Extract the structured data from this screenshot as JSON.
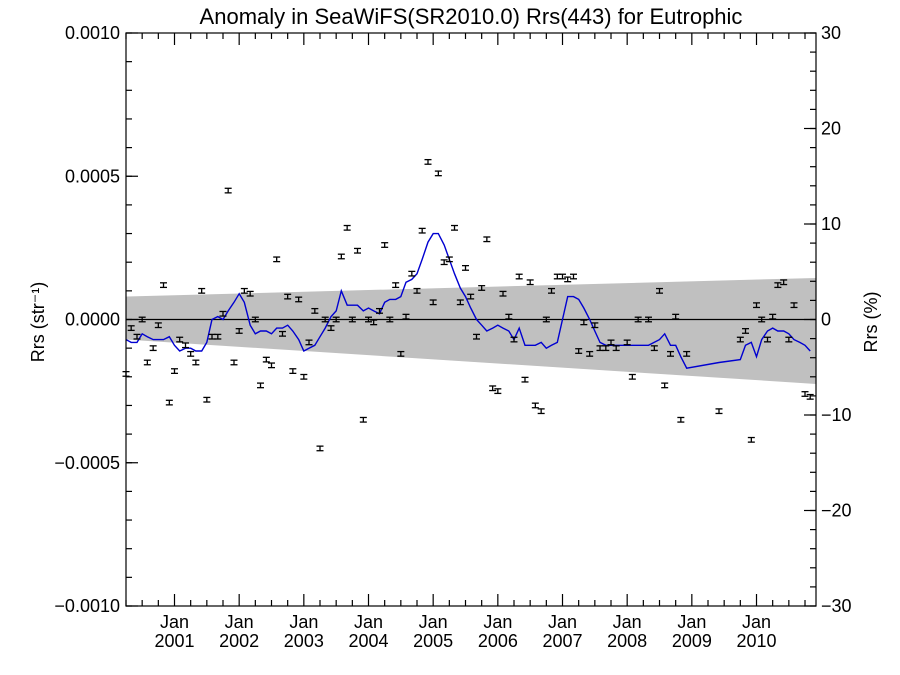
{
  "chart_data": {
    "type": "scatter",
    "title": "Anomaly in SeaWiFS(SR2010.0) Rrs(443) for Eutrophic",
    "ylabel_left": "Rrs (str⁻¹)",
    "ylabel_right": "Rrs (%)",
    "xlim": [
      2000.25,
      2010.92
    ],
    "ylim": [
      -0.001,
      0.001
    ],
    "ylim_right": [
      -30,
      30
    ],
    "grid": false,
    "x_ticks": [
      {
        "value": 2001.0,
        "top": "Jan",
        "bottom": "2001"
      },
      {
        "value": 2002.0,
        "top": "Jan",
        "bottom": "2002"
      },
      {
        "value": 2003.0,
        "top": "Jan",
        "bottom": "2003"
      },
      {
        "value": 2004.0,
        "top": "Jan",
        "bottom": "2004"
      },
      {
        "value": 2005.0,
        "top": "Jan",
        "bottom": "2005"
      },
      {
        "value": 2006.0,
        "top": "Jan",
        "bottom": "2006"
      },
      {
        "value": 2007.0,
        "top": "Jan",
        "bottom": "2007"
      },
      {
        "value": 2008.0,
        "top": "Jan",
        "bottom": "2008"
      },
      {
        "value": 2009.0,
        "top": "Jan",
        "bottom": "2009"
      },
      {
        "value": 2010.0,
        "top": "Jan",
        "bottom": "2010"
      }
    ],
    "y_ticks_left": [
      {
        "value": 0.001,
        "label": "0.0010"
      },
      {
        "value": 0.0005,
        "label": "0.0005"
      },
      {
        "value": 0.0,
        "label": "0.0000"
      },
      {
        "value": -0.0005,
        "label": "−0.0005"
      },
      {
        "value": -0.001,
        "label": "−0.0010"
      }
    ],
    "y_ticks_right": [
      {
        "value": 30,
        "label": "30"
      },
      {
        "value": 20,
        "label": "20"
      },
      {
        "value": 10,
        "label": "10"
      },
      {
        "value": 0,
        "label": "0"
      },
      {
        "value": -10,
        "label": "−10"
      },
      {
        "value": -20,
        "label": "−20"
      },
      {
        "value": -30,
        "label": "−30"
      }
    ],
    "band": {
      "color": "#c0c0c0",
      "x": [
        2000.25,
        2010.92
      ],
      "upper": [
        8e-05,
        0.000145
      ],
      "lower": [
        -7e-05,
        -0.000225
      ]
    },
    "zero_line": {
      "y": 0.0,
      "color": "#000000"
    },
    "series": [
      {
        "kind": "points_errorbar",
        "color": "#000000",
        "error": 8e-06,
        "points": [
          [
            2000.25,
            -0.00019
          ],
          [
            2000.33,
            -3e-05
          ],
          [
            2000.42,
            -6e-05
          ],
          [
            2000.5,
            0.0
          ],
          [
            2000.58,
            -0.00015
          ],
          [
            2000.67,
            -0.0001
          ],
          [
            2000.75,
            -2e-05
          ],
          [
            2000.83,
            0.00012
          ],
          [
            2000.92,
            -0.00029
          ],
          [
            2001.0,
            -0.00018
          ],
          [
            2001.08,
            -7e-05
          ],
          [
            2001.17,
            -9e-05
          ],
          [
            2001.25,
            -0.00012
          ],
          [
            2001.33,
            -0.00015
          ],
          [
            2001.42,
            0.0001
          ],
          [
            2001.5,
            -0.00028
          ],
          [
            2001.58,
            -6e-05
          ],
          [
            2001.67,
            -6e-05
          ],
          [
            2001.75,
            2e-05
          ],
          [
            2001.83,
            0.00045
          ],
          [
            2001.92,
            -0.00015
          ],
          [
            2002.0,
            -4e-05
          ],
          [
            2002.08,
            0.0001
          ],
          [
            2002.17,
            9e-05
          ],
          [
            2002.25,
            0.0
          ],
          [
            2002.33,
            -0.00023
          ],
          [
            2002.42,
            -0.00014
          ],
          [
            2002.5,
            -0.00016
          ],
          [
            2002.58,
            0.00021
          ],
          [
            2002.67,
            -5e-05
          ],
          [
            2002.75,
            8e-05
          ],
          [
            2002.83,
            -0.00018
          ],
          [
            2002.92,
            7e-05
          ],
          [
            2003.0,
            -0.0002
          ],
          [
            2003.08,
            -8e-05
          ],
          [
            2003.17,
            3e-05
          ],
          [
            2003.25,
            -0.00045
          ],
          [
            2003.33,
            0.0
          ],
          [
            2003.42,
            -3e-05
          ],
          [
            2003.5,
            0.0
          ],
          [
            2003.58,
            0.00022
          ],
          [
            2003.67,
            0.00032
          ],
          [
            2003.75,
            0.0
          ],
          [
            2003.83,
            0.00024
          ],
          [
            2003.92,
            -0.00035
          ],
          [
            2004.0,
            0.0
          ],
          [
            2004.08,
            -1e-05
          ],
          [
            2004.17,
            3e-05
          ],
          [
            2004.25,
            0.00026
          ],
          [
            2004.33,
            0.0
          ],
          [
            2004.42,
            0.00012
          ],
          [
            2004.5,
            -0.00012
          ],
          [
            2004.58,
            1e-05
          ],
          [
            2004.67,
            0.00016
          ],
          [
            2004.75,
            0.0001
          ],
          [
            2004.83,
            0.00031
          ],
          [
            2004.92,
            0.00055
          ],
          [
            2005.0,
            6e-05
          ],
          [
            2005.08,
            0.00051
          ],
          [
            2005.17,
            0.0002
          ],
          [
            2005.25,
            0.00021
          ],
          [
            2005.33,
            0.00032
          ],
          [
            2005.42,
            6e-05
          ],
          [
            2005.5,
            0.00018
          ],
          [
            2005.58,
            8e-05
          ],
          [
            2005.67,
            -6e-05
          ],
          [
            2005.75,
            0.00011
          ],
          [
            2005.83,
            0.00028
          ],
          [
            2005.92,
            -0.00024
          ],
          [
            2006.0,
            -0.00025
          ],
          [
            2006.08,
            9e-05
          ],
          [
            2006.17,
            1e-05
          ],
          [
            2006.25,
            -7e-05
          ],
          [
            2006.33,
            0.00015
          ],
          [
            2006.42,
            -0.00021
          ],
          [
            2006.5,
            0.00013
          ],
          [
            2006.58,
            -0.0003
          ],
          [
            2006.67,
            -0.00032
          ],
          [
            2006.75,
            0.0
          ],
          [
            2006.83,
            0.0001
          ],
          [
            2006.92,
            0.00015
          ],
          [
            2007.0,
            0.00015
          ],
          [
            2007.08,
            0.00014
          ],
          [
            2007.17,
            0.00015
          ],
          [
            2007.25,
            -0.00011
          ],
          [
            2007.33,
            -1e-05
          ],
          [
            2007.42,
            -0.00012
          ],
          [
            2007.5,
            -2e-05
          ],
          [
            2007.58,
            -0.0001
          ],
          [
            2007.67,
            -0.0001
          ],
          [
            2007.75,
            -8e-05
          ],
          [
            2007.83,
            -0.0001
          ],
          [
            2008.0,
            -8e-05
          ],
          [
            2008.08,
            -0.0002
          ],
          [
            2008.17,
            0.0
          ],
          [
            2008.33,
            0.0
          ],
          [
            2008.42,
            -0.0001
          ],
          [
            2008.5,
            0.0001
          ],
          [
            2008.58,
            -0.00023
          ],
          [
            2008.67,
            -0.00012
          ],
          [
            2008.75,
            1e-05
          ],
          [
            2008.83,
            -0.00035
          ],
          [
            2008.92,
            -0.00012
          ],
          [
            2009.42,
            -0.00032
          ],
          [
            2009.75,
            -7e-05
          ],
          [
            2009.83,
            -4e-05
          ],
          [
            2009.92,
            -0.00042
          ],
          [
            2010.0,
            5e-05
          ],
          [
            2010.08,
            0.0
          ],
          [
            2010.17,
            -7e-05
          ],
          [
            2010.25,
            1e-05
          ],
          [
            2010.33,
            0.00012
          ],
          [
            2010.42,
            0.00013
          ],
          [
            2010.5,
            -7e-05
          ],
          [
            2010.58,
            5e-05
          ],
          [
            2010.75,
            -0.00026
          ],
          [
            2010.83,
            -0.00027
          ]
        ]
      },
      {
        "kind": "line",
        "color": "#0000d0",
        "points": [
          [
            2000.25,
            -7e-05
          ],
          [
            2000.33,
            -8e-05
          ],
          [
            2000.42,
            -8e-05
          ],
          [
            2000.5,
            -5e-05
          ],
          [
            2000.58,
            -6e-05
          ],
          [
            2000.67,
            -7e-05
          ],
          [
            2000.75,
            -7e-05
          ],
          [
            2000.83,
            -7e-05
          ],
          [
            2000.92,
            -6e-05
          ],
          [
            2001.0,
            -9e-05
          ],
          [
            2001.08,
            -0.00011
          ],
          [
            2001.17,
            -0.0001
          ],
          [
            2001.25,
            -0.0001
          ],
          [
            2001.33,
            -0.00011
          ],
          [
            2001.42,
            -0.00011
          ],
          [
            2001.5,
            -8e-05
          ],
          [
            2001.58,
            0.0
          ],
          [
            2001.67,
            1e-05
          ],
          [
            2001.75,
            0.0
          ],
          [
            2001.83,
            3e-05
          ],
          [
            2001.92,
            6e-05
          ],
          [
            2002.0,
            9e-05
          ],
          [
            2002.08,
            6e-05
          ],
          [
            2002.17,
            -2e-05
          ],
          [
            2002.25,
            -5e-05
          ],
          [
            2002.33,
            -4e-05
          ],
          [
            2002.42,
            -4e-05
          ],
          [
            2002.5,
            -5e-05
          ],
          [
            2002.58,
            -3e-05
          ],
          [
            2002.67,
            -3e-05
          ],
          [
            2002.75,
            -2e-05
          ],
          [
            2002.83,
            -4e-05
          ],
          [
            2002.92,
            -7e-05
          ],
          [
            2003.0,
            -0.00011
          ],
          [
            2003.08,
            -0.0001
          ],
          [
            2003.17,
            -9e-05
          ],
          [
            2003.25,
            -6e-05
          ],
          [
            2003.33,
            -3e-05
          ],
          [
            2003.42,
            1e-05
          ],
          [
            2003.5,
            3e-05
          ],
          [
            2003.58,
            0.0001
          ],
          [
            2003.67,
            5e-05
          ],
          [
            2003.75,
            5e-05
          ],
          [
            2003.83,
            5e-05
          ],
          [
            2003.92,
            3e-05
          ],
          [
            2004.0,
            4e-05
          ],
          [
            2004.08,
            3e-05
          ],
          [
            2004.17,
            2e-05
          ],
          [
            2004.25,
            6e-05
          ],
          [
            2004.33,
            7e-05
          ],
          [
            2004.42,
            7e-05
          ],
          [
            2004.5,
            8e-05
          ],
          [
            2004.58,
            0.00013
          ],
          [
            2004.67,
            0.00014
          ],
          [
            2004.75,
            0.00016
          ],
          [
            2004.83,
            0.00021
          ],
          [
            2004.92,
            0.00027
          ],
          [
            2005.0,
            0.0003
          ],
          [
            2005.08,
            0.0003
          ],
          [
            2005.17,
            0.00026
          ],
          [
            2005.25,
            0.00021
          ],
          [
            2005.33,
            0.00016
          ],
          [
            2005.42,
            0.00011
          ],
          [
            2005.5,
            8e-05
          ],
          [
            2005.58,
            4e-05
          ],
          [
            2005.67,
            0.0
          ],
          [
            2005.75,
            -2e-05
          ],
          [
            2005.83,
            -4e-05
          ],
          [
            2005.92,
            -3e-05
          ],
          [
            2006.0,
            -2e-05
          ],
          [
            2006.08,
            -3e-05
          ],
          [
            2006.17,
            -4e-05
          ],
          [
            2006.25,
            -7e-05
          ],
          [
            2006.33,
            -3e-05
          ],
          [
            2006.42,
            -9e-05
          ],
          [
            2006.5,
            -9e-05
          ],
          [
            2006.58,
            -9e-05
          ],
          [
            2006.67,
            -8e-05
          ],
          [
            2006.75,
            -0.0001
          ],
          [
            2006.83,
            -9e-05
          ],
          [
            2006.92,
            -8e-05
          ],
          [
            2007.0,
            0.0
          ],
          [
            2007.08,
            8e-05
          ],
          [
            2007.17,
            8e-05
          ],
          [
            2007.25,
            7e-05
          ],
          [
            2007.33,
            4e-05
          ],
          [
            2007.42,
            0.0
          ],
          [
            2007.5,
            -4e-05
          ],
          [
            2007.58,
            -8e-05
          ],
          [
            2007.67,
            -9e-05
          ],
          [
            2007.75,
            -9e-05
          ],
          [
            2007.83,
            -9e-05
          ],
          [
            2008.0,
            -9e-05
          ],
          [
            2008.17,
            -9e-05
          ],
          [
            2008.33,
            -9e-05
          ],
          [
            2008.5,
            -7e-05
          ],
          [
            2008.58,
            -5e-05
          ],
          [
            2008.67,
            -9e-05
          ],
          [
            2008.75,
            -9e-05
          ],
          [
            2008.83,
            -0.00013
          ],
          [
            2008.92,
            -0.00017
          ],
          [
            2009.42,
            -0.00015
          ],
          [
            2009.75,
            -0.00014
          ],
          [
            2009.83,
            -9e-05
          ],
          [
            2009.92,
            -8e-05
          ],
          [
            2010.0,
            -0.00013
          ],
          [
            2010.08,
            -7e-05
          ],
          [
            2010.17,
            -4e-05
          ],
          [
            2010.25,
            -3e-05
          ],
          [
            2010.33,
            -4e-05
          ],
          [
            2010.42,
            -4e-05
          ],
          [
            2010.5,
            -5e-05
          ],
          [
            2010.58,
            -7e-05
          ],
          [
            2010.67,
            -8e-05
          ],
          [
            2010.75,
            -9e-05
          ],
          [
            2010.83,
            -0.00011
          ]
        ]
      }
    ]
  }
}
